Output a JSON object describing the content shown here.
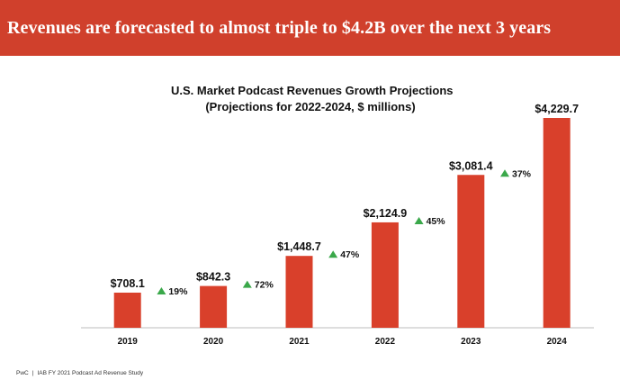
{
  "banner": {
    "headline": "Revenues are forecasted to almost triple to $4.2B over the next 3 years"
  },
  "colors": {
    "banner": "#d0402c",
    "bar": "#d9402b",
    "growth_arrow": "#3aa84a",
    "axis": "#bdbdbd"
  },
  "chart_data": {
    "type": "bar",
    "title": "U.S. Market Podcast Revenues Growth Projections",
    "subtitle": "(Projections for 2022-2024, $ millions)",
    "categories": [
      "2019",
      "2020",
      "2021",
      "2022",
      "2023",
      "2024"
    ],
    "values": [
      708.1,
      842.3,
      1448.7,
      2124.9,
      3081.4,
      4229.7
    ],
    "value_labels": [
      "$708.1",
      "$842.3",
      "$1,448.7",
      "$2,124.9",
      "$3,081.4",
      "$4,229.7"
    ],
    "growth_labels": [
      "19%",
      "72%",
      "47%",
      "45%",
      "37%"
    ],
    "ylim": [
      0,
      4229.7
    ],
    "grid": false,
    "legend": "none"
  },
  "footer": {
    "source": "PwC",
    "separator": "|",
    "study": "IAB FY 2021 Podcast Ad Revenue Study"
  }
}
